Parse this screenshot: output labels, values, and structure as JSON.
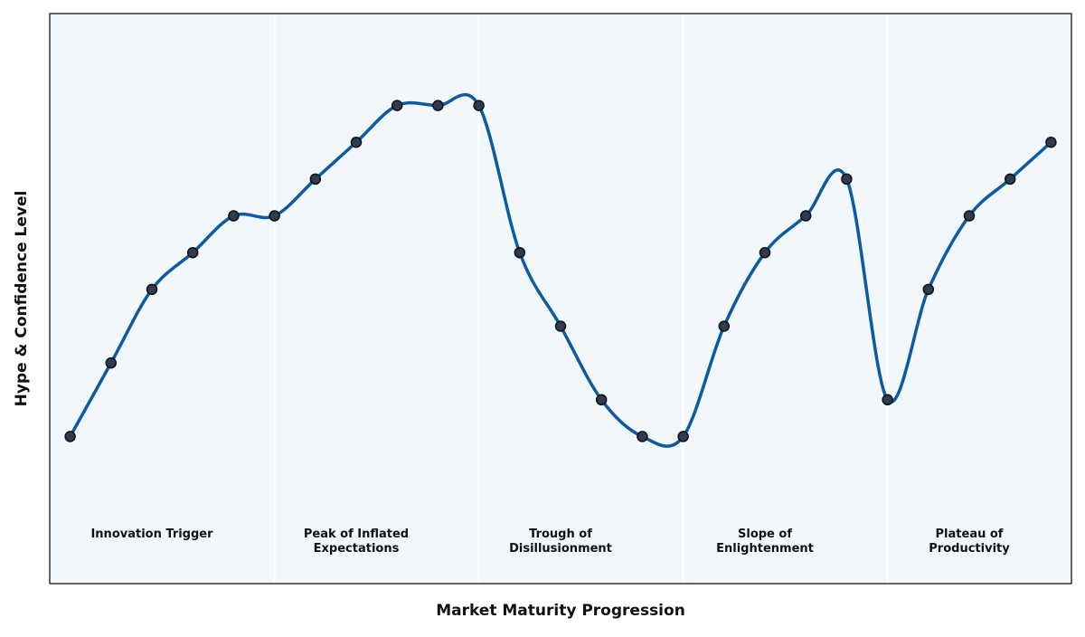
{
  "chart_data": {
    "type": "line",
    "x_label": "Market Maturity Progression",
    "y_label": "Hype & Confidence Level",
    "x": [
      0,
      1,
      2,
      3,
      4,
      5,
      6,
      7,
      8,
      9,
      10,
      11,
      12,
      13,
      14,
      15,
      16,
      17,
      18,
      19,
      20,
      21,
      22,
      23,
      24
    ],
    "series": [
      {
        "color": "#0b5aa2",
        "marker_color": "#2f3b4f",
        "values": [
          1,
          3,
          5,
          6,
          7,
          7,
          8,
          9,
          10,
          10,
          10,
          6,
          4,
          2,
          1,
          1,
          4,
          6,
          7,
          8,
          2,
          5,
          7,
          8,
          9
        ]
      }
    ],
    "xlim": [
      -0.5,
      24.5
    ],
    "ylim": [
      -3,
      12.5
    ],
    "phases": [
      {
        "label": [
          "Innovation Trigger"
        ],
        "from": 0,
        "to": 4
      },
      {
        "label": [
          "Peak of Inflated",
          "Expectations"
        ],
        "from": 5,
        "to": 9
      },
      {
        "label": [
          "Trough of",
          "Disillusionment"
        ],
        "from": 10,
        "to": 14
      },
      {
        "label": [
          "Slope of",
          "Enlightenment"
        ],
        "from": 15,
        "to": 19
      },
      {
        "label": [
          "Plateau of",
          "Productivity"
        ],
        "from": 20,
        "to": 24
      }
    ]
  }
}
